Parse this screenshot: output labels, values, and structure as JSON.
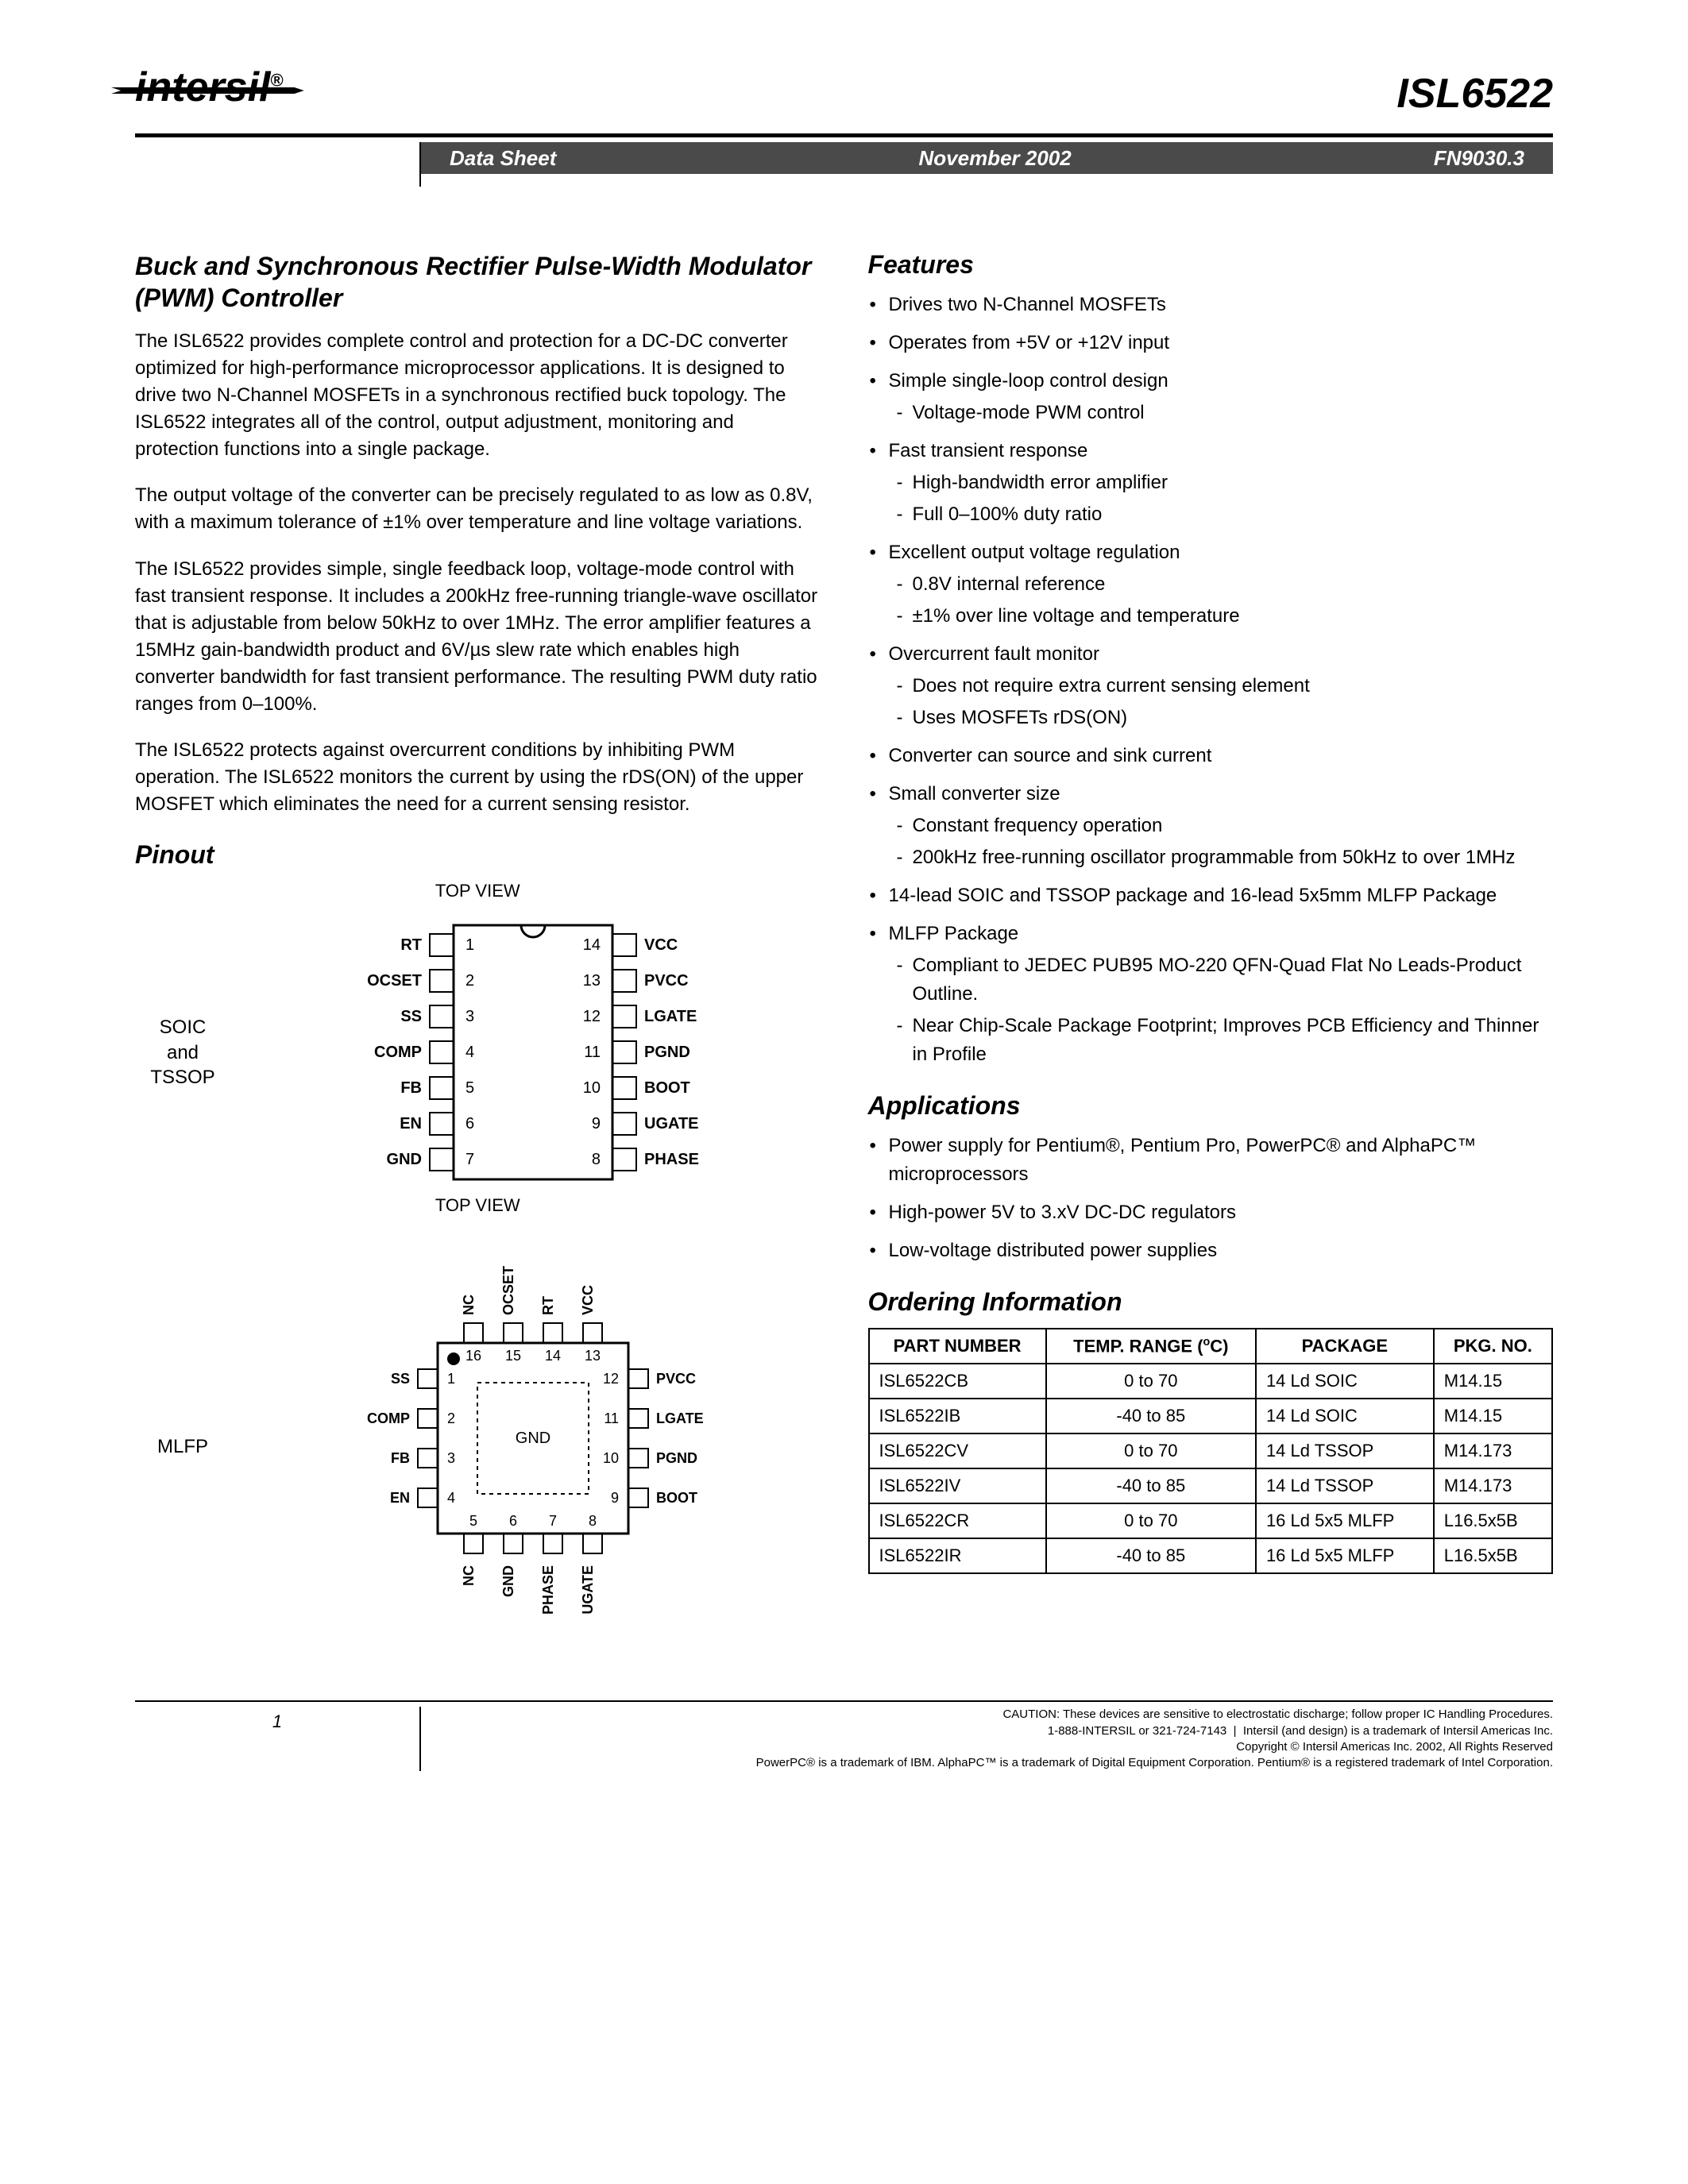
{
  "header": {
    "logo_text": "intersil",
    "logo_reg": "®",
    "part_number": "ISL6522",
    "banner_left": "Data Sheet",
    "banner_center": "November 2002",
    "banner_right": "FN9030.3"
  },
  "title": "Buck and Synchronous Rectifier Pulse-Width Modulator (PWM) Controller",
  "desc_paragraphs": [
    "The ISL6522 provides complete control and protection for a DC-DC converter optimized for high-performance microprocessor applications. It is designed to drive two N-Channel MOSFETs in a synchronous rectified buck topology. The ISL6522 integrates all of the control, output adjustment, monitoring and protection functions into a single package.",
    "The output voltage of the converter can be precisely regulated to as low as 0.8V, with a maximum tolerance of ±1% over temperature and line voltage variations.",
    "The ISL6522 provides simple, single feedback loop, voltage-mode control with fast transient response. It includes a 200kHz free-running triangle-wave oscillator that is adjustable from below 50kHz to over 1MHz. The error amplifier features a 15MHz gain-bandwidth product and 6V/µs slew rate which enables high converter bandwidth for fast transient performance. The resulting PWM duty ratio ranges from 0–100%.",
    "The ISL6522 protects against overcurrent conditions by inhibiting PWM operation. The ISL6522 monitors the current by using the rDS(ON) of the upper MOSFET which eliminates the need for a current sensing resistor."
  ],
  "pinout": {
    "heading": "Pinout",
    "top_view": "TOP VIEW",
    "soic_label": "SOIC\nand\nTSSOP",
    "mlfp_label": "MLFP",
    "soic_left": [
      "RT",
      "OCSET",
      "SS",
      "COMP",
      "FB",
      "EN",
      "GND"
    ],
    "soic_right": [
      "VCC",
      "PVCC",
      "LGATE",
      "PGND",
      "BOOT",
      "UGATE",
      "PHASE"
    ],
    "soic_left_nums": [
      1,
      2,
      3,
      4,
      5,
      6,
      7
    ],
    "soic_right_nums": [
      14,
      13,
      12,
      11,
      10,
      9,
      8
    ],
    "mlfp_left": [
      "SS",
      "COMP",
      "FB",
      "EN"
    ],
    "mlfp_right": [
      "PVCC",
      "LGATE",
      "PGND",
      "BOOT"
    ],
    "mlfp_top": [
      "NC",
      "OCSET",
      "RT",
      "VCC"
    ],
    "mlfp_bottom": [
      "NC",
      "GND",
      "PHASE",
      "UGATE"
    ],
    "mlfp_left_nums": [
      1,
      2,
      3,
      4
    ],
    "mlfp_right_nums": [
      12,
      11,
      10,
      9
    ],
    "mlfp_top_nums": [
      16,
      15,
      14,
      13
    ],
    "mlfp_bottom_nums": [
      5,
      6,
      7,
      8
    ],
    "mlfp_center": "GND"
  },
  "features": {
    "heading": "Features",
    "items": [
      {
        "text": "Drives two N-Channel MOSFETs"
      },
      {
        "text": "Operates from +5V or +12V input"
      },
      {
        "text": "Simple single-loop control design",
        "sub": [
          "Voltage-mode PWM control"
        ]
      },
      {
        "text": "Fast transient response",
        "sub": [
          "High-bandwidth error amplifier",
          "Full 0–100% duty ratio"
        ]
      },
      {
        "text": "Excellent output voltage regulation",
        "sub": [
          "0.8V internal reference",
          "±1% over line voltage and temperature"
        ]
      },
      {
        "text": "Overcurrent fault monitor",
        "sub": [
          "Does not require extra current sensing element",
          "Uses MOSFETs rDS(ON)"
        ]
      },
      {
        "text": "Converter can source and sink current"
      },
      {
        "text": "Small converter size",
        "sub": [
          "Constant frequency operation",
          "200kHz free-running oscillator programmable from 50kHz to over 1MHz"
        ]
      },
      {
        "text": "14-lead SOIC and TSSOP package and 16-lead 5x5mm MLFP Package"
      },
      {
        "text": "MLFP Package",
        "sub": [
          "Compliant to JEDEC PUB95 MO-220 QFN-Quad Flat No Leads-Product Outline.",
          "Near Chip-Scale Package Footprint; Improves PCB Efficiency and Thinner in Profile"
        ]
      }
    ]
  },
  "applications": {
    "heading": "Applications",
    "items": [
      "Power supply for Pentium®, Pentium Pro, PowerPC® and AlphaPC™ microprocessors",
      "High-power 5V to 3.xV DC-DC regulators",
      "Low-voltage distributed power supplies"
    ]
  },
  "ordering": {
    "heading": "Ordering Information",
    "columns": [
      "PART NUMBER",
      "TEMP. RANGE (°C)",
      "PACKAGE",
      "PKG. NO."
    ],
    "rows": [
      [
        "ISL6522CB",
        "0 to 70",
        "14 Ld SOIC",
        "M14.15"
      ],
      [
        "ISL6522IB",
        "-40 to 85",
        "14 Ld SOIC",
        "M14.15"
      ],
      [
        "ISL6522CV",
        "0 to 70",
        "14 Ld TSSOP",
        "M14.173"
      ],
      [
        "ISL6522IV",
        "-40 to 85",
        "14 Ld TSSOP",
        "M14.173"
      ],
      [
        "ISL6522CR",
        "0 to 70",
        "16 Ld 5x5 MLFP",
        "L16.5x5B"
      ],
      [
        "ISL6522IR",
        "-40 to 85",
        "16 Ld 5x5 MLFP",
        "L16.5x5B"
      ]
    ]
  },
  "footer": {
    "page_num": "1",
    "caution": "CAUTION: These devices are sensitive to electrostatic discharge; follow proper IC Handling Procedures.",
    "phone": "1-888-INTERSIL or 321-724-7143",
    "tm1": "Intersil (and design) is a trademark of Intersil Americas Inc.",
    "copyright": "Copyright © Intersil Americas Inc. 2002, All Rights Reserved",
    "tm2": "PowerPC® is a trademark of IBM. AlphaPC™ is a trademark of Digital Equipment Corporation. Pentium® is a registered trademark of Intel Corporation."
  },
  "colors": {
    "banner_bg": "#4a4a4a",
    "text": "#000000",
    "background": "#ffffff"
  }
}
